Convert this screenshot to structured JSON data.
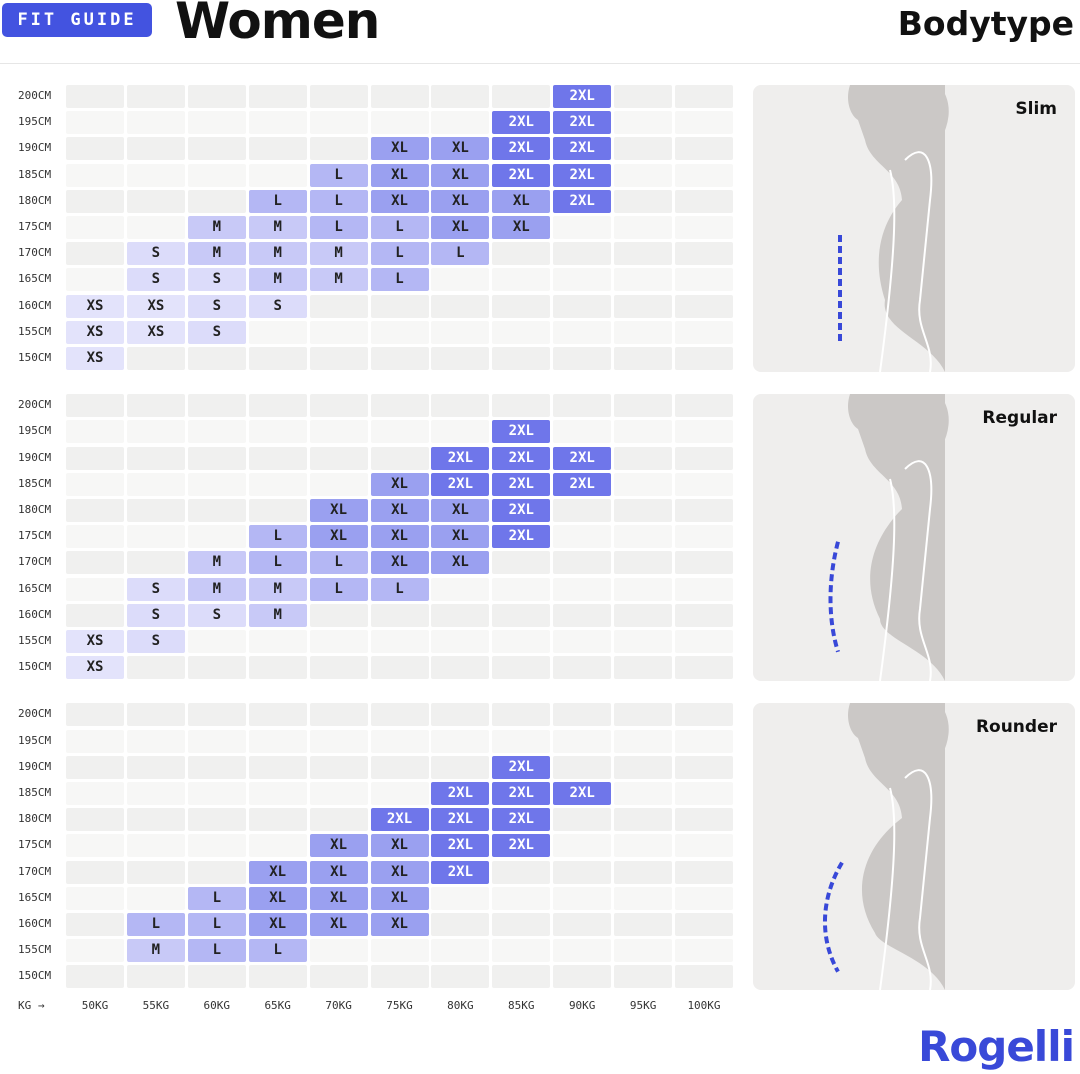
{
  "header": {
    "badge": "FIT GUIDE",
    "title": "Women",
    "subtitle": "Bodytype"
  },
  "heights": [
    "200CM",
    "195CM",
    "190CM",
    "185CM",
    "180CM",
    "175CM",
    "170CM",
    "165CM",
    "160CM",
    "155CM",
    "150CM"
  ],
  "weights": [
    "50KG",
    "55KG",
    "60KG",
    "65KG",
    "70KG",
    "75KG",
    "80KG",
    "85KG",
    "90KG",
    "95KG",
    "100KG"
  ],
  "weight_axis_label": "KG →",
  "size_colors": {
    "XS": "#e3e3fb",
    "S": "#dcdcfa",
    "M": "#c8c9f7",
    "L": "#b4b7f4",
    "XL": "#9aa0f0",
    "2XL": "#6f76ea"
  },
  "panels": [
    {
      "label": "Slim",
      "rows": [
        [
          null,
          null,
          null,
          null,
          null,
          null,
          null,
          null,
          "2XL",
          null,
          null
        ],
        [
          null,
          null,
          null,
          null,
          null,
          null,
          null,
          "2XL",
          "2XL",
          null,
          null
        ],
        [
          null,
          null,
          null,
          null,
          null,
          "XL",
          "XL",
          "2XL",
          "2XL",
          null,
          null
        ],
        [
          null,
          null,
          null,
          null,
          "L",
          "XL",
          "XL",
          "2XL",
          "2XL",
          null,
          null
        ],
        [
          null,
          null,
          null,
          "L",
          "L",
          "XL",
          "XL",
          "XL",
          "2XL",
          null,
          null
        ],
        [
          null,
          null,
          "M",
          "M",
          "L",
          "L",
          "XL",
          "XL",
          null,
          null,
          null
        ],
        [
          null,
          "S",
          "M",
          "M",
          "M",
          "L",
          "L",
          null,
          null,
          null,
          null
        ],
        [
          null,
          "S",
          "S",
          "M",
          "M",
          "L",
          null,
          null,
          null,
          null,
          null
        ],
        [
          "XS",
          "XS",
          "S",
          "S",
          null,
          null,
          null,
          null,
          null,
          null,
          null
        ],
        [
          "XS",
          "XS",
          "S",
          null,
          null,
          null,
          null,
          null,
          null,
          null,
          null
        ],
        [
          "XS",
          null,
          null,
          null,
          null,
          null,
          null,
          null,
          null,
          null,
          null
        ]
      ]
    },
    {
      "label": "Regular",
      "rows": [
        [
          null,
          null,
          null,
          null,
          null,
          null,
          null,
          null,
          null,
          null,
          null
        ],
        [
          null,
          null,
          null,
          null,
          null,
          null,
          null,
          "2XL",
          null,
          null,
          null
        ],
        [
          null,
          null,
          null,
          null,
          null,
          null,
          "2XL",
          "2XL",
          "2XL",
          null,
          null
        ],
        [
          null,
          null,
          null,
          null,
          null,
          "XL",
          "2XL",
          "2XL",
          "2XL",
          null,
          null
        ],
        [
          null,
          null,
          null,
          null,
          "XL",
          "XL",
          "XL",
          "2XL",
          null,
          null,
          null
        ],
        [
          null,
          null,
          null,
          "L",
          "XL",
          "XL",
          "XL",
          "2XL",
          null,
          null,
          null
        ],
        [
          null,
          null,
          "M",
          "L",
          "L",
          "XL",
          "XL",
          null,
          null,
          null,
          null
        ],
        [
          null,
          "S",
          "M",
          "M",
          "L",
          "L",
          null,
          null,
          null,
          null,
          null
        ],
        [
          null,
          "S",
          "S",
          "M",
          null,
          null,
          null,
          null,
          null,
          null,
          null
        ],
        [
          "XS",
          "S",
          null,
          null,
          null,
          null,
          null,
          null,
          null,
          null,
          null
        ],
        [
          "XS",
          null,
          null,
          null,
          null,
          null,
          null,
          null,
          null,
          null,
          null
        ]
      ]
    },
    {
      "label": "Rounder",
      "rows": [
        [
          null,
          null,
          null,
          null,
          null,
          null,
          null,
          null,
          null,
          null,
          null
        ],
        [
          null,
          null,
          null,
          null,
          null,
          null,
          null,
          null,
          null,
          null,
          null
        ],
        [
          null,
          null,
          null,
          null,
          null,
          null,
          null,
          "2XL",
          null,
          null,
          null
        ],
        [
          null,
          null,
          null,
          null,
          null,
          null,
          "2XL",
          "2XL",
          "2XL",
          null,
          null
        ],
        [
          null,
          null,
          null,
          null,
          null,
          "2XL",
          "2XL",
          "2XL",
          null,
          null,
          null
        ],
        [
          null,
          null,
          null,
          null,
          "XL",
          "XL",
          "2XL",
          "2XL",
          null,
          null,
          null
        ],
        [
          null,
          null,
          null,
          "XL",
          "XL",
          "XL",
          "2XL",
          null,
          null,
          null,
          null
        ],
        [
          null,
          null,
          "L",
          "XL",
          "XL",
          "XL",
          null,
          null,
          null,
          null,
          null
        ],
        [
          null,
          "L",
          "L",
          "XL",
          "XL",
          "XL",
          null,
          null,
          null,
          null,
          null
        ],
        [
          null,
          "M",
          "L",
          "L",
          null,
          null,
          null,
          null,
          null,
          null,
          null
        ],
        [
          null,
          null,
          null,
          null,
          null,
          null,
          null,
          null,
          null,
          null,
          null
        ]
      ]
    }
  ],
  "brand": "Rogelli"
}
